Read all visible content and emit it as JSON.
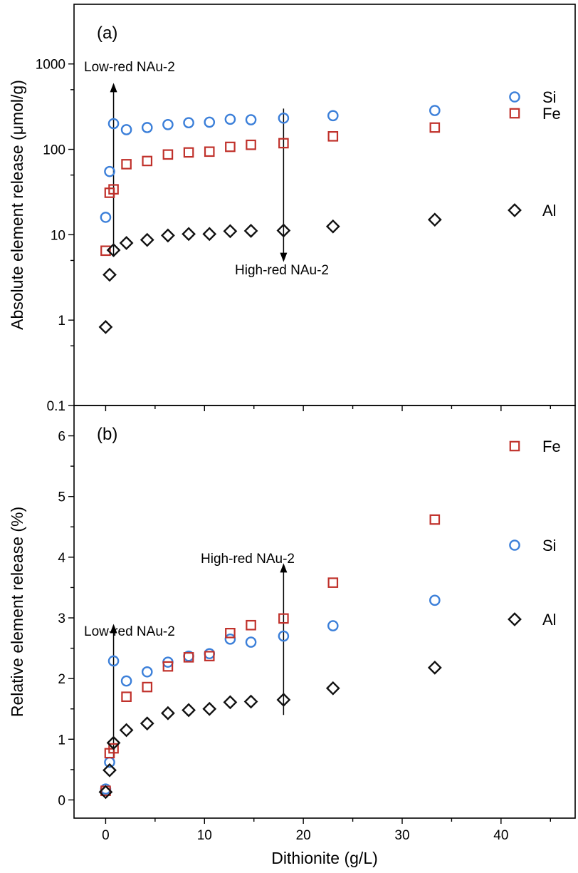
{
  "colors": {
    "Si": "#3b7fd9",
    "Fe": "#c0312b",
    "Al": "#111111"
  },
  "xlabel": "Dithionite (g/L)",
  "x_ticks": [
    "0",
    "10",
    "20",
    "30",
    "40"
  ],
  "chart_data": [
    {
      "type": "scatter",
      "panel_label": "(a)",
      "ylabel": "Absolute element release (μmol/g)",
      "yscale": "log",
      "xlim": [
        -3.2,
        47.5
      ],
      "ylim": [
        0.1,
        5000
      ],
      "y_ticks": [
        "0.1",
        "1",
        "10",
        "100",
        "1000"
      ],
      "legend": [
        "Si",
        "Fe",
        "Al"
      ],
      "series": [
        {
          "name": "Si",
          "marker": "circle",
          "x": [
            0,
            0.4,
            0.8,
            2.1,
            4.2,
            6.3,
            8.4,
            10.5,
            12.6,
            14.7,
            18,
            23,
            33.3
          ],
          "y": [
            16,
            55,
            200,
            170,
            180,
            195,
            205,
            208,
            225,
            222,
            232,
            248,
            285
          ]
        },
        {
          "name": "Fe",
          "marker": "square",
          "x": [
            0,
            0.4,
            0.8,
            2.1,
            4.2,
            6.3,
            8.4,
            10.5,
            12.6,
            14.7,
            18,
            23,
            33.3
          ],
          "y": [
            6.5,
            31,
            34,
            67,
            73,
            87,
            92,
            94,
            107,
            113,
            118,
            142,
            180
          ]
        },
        {
          "name": "Al",
          "marker": "diamond",
          "x": [
            0,
            0.4,
            0.8,
            2.1,
            4.2,
            6.3,
            8.4,
            10.5,
            12.6,
            14.7,
            18,
            23,
            33.3
          ],
          "y": [
            0.83,
            3.4,
            6.6,
            8.0,
            8.7,
            9.8,
            10.2,
            10.2,
            11.0,
            11.1,
            11.2,
            12.5,
            15.0
          ]
        }
      ],
      "annotations": [
        {
          "text": "Low-red NAu-2",
          "x": 0.8,
          "from": 5.5,
          "to": 600,
          "dir": "up"
        },
        {
          "text": "High-red NAu-2",
          "x": 18,
          "from": 300,
          "to": 4.8,
          "dir": "down"
        }
      ]
    },
    {
      "type": "scatter",
      "panel_label": "(b)",
      "ylabel": "Relative element release (%)",
      "yscale": "linear",
      "xlim": [
        -3.2,
        47.5
      ],
      "ylim": [
        -0.3,
        6.5
      ],
      "y_ticks": [
        "0",
        "1",
        "2",
        "3",
        "4",
        "5",
        "6"
      ],
      "legend": [
        "Fe",
        "Si",
        "Al"
      ],
      "series": [
        {
          "name": "Si",
          "marker": "circle",
          "x": [
            0,
            0.4,
            0.8,
            2.1,
            4.2,
            6.3,
            8.4,
            10.5,
            12.6,
            14.7,
            18,
            23,
            33.3
          ],
          "y": [
            0.18,
            0.62,
            2.29,
            1.96,
            2.11,
            2.27,
            2.37,
            2.41,
            2.65,
            2.6,
            2.7,
            2.87,
            3.29
          ]
        },
        {
          "name": "Fe",
          "marker": "square",
          "x": [
            0,
            0.4,
            0.8,
            2.1,
            4.2,
            6.3,
            8.4,
            10.5,
            12.6,
            14.7,
            18,
            23,
            33.3
          ],
          "y": [
            0.15,
            0.77,
            0.85,
            1.7,
            1.86,
            2.2,
            2.35,
            2.37,
            2.75,
            2.88,
            2.99,
            3.58,
            4.62
          ]
        },
        {
          "name": "Al",
          "marker": "diamond",
          "x": [
            0,
            0.4,
            0.8,
            2.1,
            4.2,
            6.3,
            8.4,
            10.5,
            12.6,
            14.7,
            18,
            23,
            33.3
          ],
          "y": [
            0.13,
            0.49,
            0.94,
            1.15,
            1.26,
            1.43,
            1.48,
            1.5,
            1.61,
            1.62,
            1.65,
            1.84,
            2.18
          ]
        }
      ],
      "annotations": [
        {
          "text": "Low-red NAu-2",
          "x": 0.8,
          "from": 0.7,
          "to": 2.9,
          "dir": "up"
        },
        {
          "text": "High-red NAu-2",
          "x": 18,
          "from": 1.4,
          "to": 3.9,
          "dir": "up"
        }
      ]
    }
  ]
}
